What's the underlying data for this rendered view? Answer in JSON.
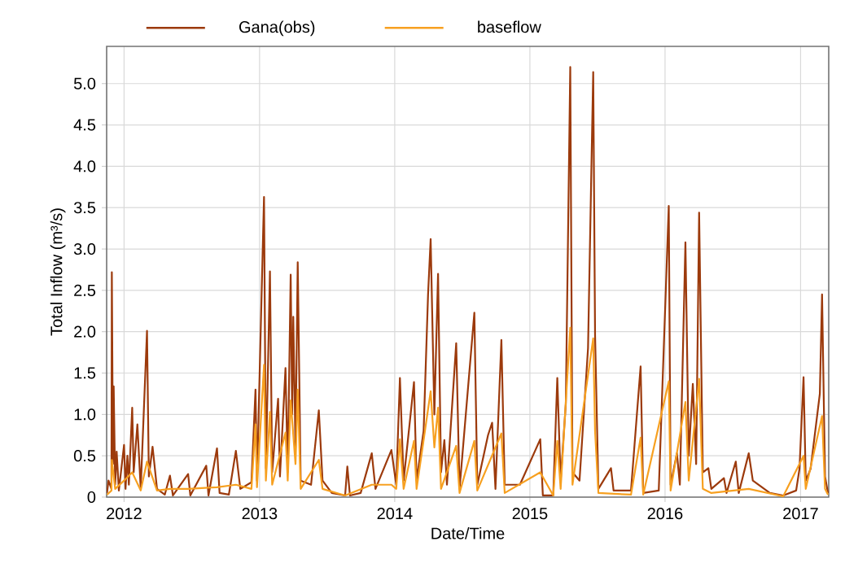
{
  "chart_data": {
    "type": "line",
    "xlabel": "Date/Time",
    "ylabel": "Total Inflow (m³/s)",
    "xlim": [
      "2011-11-15",
      "2017-03-18"
    ],
    "ylim": [
      0,
      5.45
    ],
    "xticks": [
      "2012",
      "2013",
      "2014",
      "2015",
      "2016",
      "2017"
    ],
    "yticks": [
      0,
      0.5,
      {
        "value": 1,
        "label": "1.0"
      },
      1.5,
      {
        "value": 2,
        "label": "2.0"
      },
      2.5,
      {
        "value": 3,
        "label": "3.0"
      },
      3.5,
      {
        "value": 4,
        "label": "4.0"
      },
      4.5,
      {
        "value": 5,
        "label": "5.0"
      }
    ],
    "grid": true,
    "legend": "top",
    "line_style": "solid",
    "series": [
      {
        "name": "Gana(obs)",
        "color": "#9c3a0c",
        "x": [
          "2011-11-16",
          "2011-11-20",
          "2011-11-28",
          "2011-11-29",
          "2011-12-02",
          "2011-12-04",
          "2011-12-08",
          "2011-12-12",
          "2011-12-18",
          "2012-01-01",
          "2012-01-05",
          "2012-01-10",
          "2012-01-14",
          "2012-01-23",
          "2012-01-27",
          "2012-02-06",
          "2012-02-15",
          "2012-03-03",
          "2012-03-08",
          "2012-03-18",
          "2012-03-30",
          "2012-04-20",
          "2012-05-04",
          "2012-05-12",
          "2012-06-22",
          "2012-06-28",
          "2012-08-10",
          "2012-08-16",
          "2012-09-08",
          "2012-09-15",
          "2012-10-10",
          "2012-10-29",
          "2012-11-10",
          "2012-12-10",
          "2012-12-21",
          "2012-12-25",
          "2013-01-13",
          "2013-01-18",
          "2013-01-29",
          "2013-02-04",
          "2013-02-20",
          "2013-02-25",
          "2013-03-12",
          "2013-03-18",
          "2013-03-26",
          "2013-03-30",
          "2013-04-02",
          "2013-04-08",
          "2013-04-14",
          "2013-04-22",
          "2013-05-20",
          "2013-06-10",
          "2013-06-20",
          "2013-07-15",
          "2013-08-20",
          "2013-08-26",
          "2013-09-02",
          "2013-10-01",
          "2013-10-31",
          "2013-11-10",
          "2013-12-23",
          "2014-01-05",
          "2014-01-15",
          "2014-01-25",
          "2014-02-22",
          "2014-03-01",
          "2014-03-20",
          "2014-04-01",
          "2014-04-08",
          "2014-04-12",
          "2014-04-18",
          "2014-04-28",
          "2014-05-06",
          "2014-05-15",
          "2014-05-22",
          "2014-06-16",
          "2014-06-25",
          "2014-08-04",
          "2014-08-12",
          "2014-09-10",
          "2014-09-21",
          "2014-09-30",
          "2014-10-16",
          "2014-10-25",
          "2014-12-05",
          "2015-01-29",
          "2015-02-05",
          "2015-03-05",
          "2015-03-16",
          "2015-03-25",
          "2015-04-08",
          "2015-04-20",
          "2015-04-26",
          "2015-05-15",
          "2015-06-07",
          "2015-06-21",
          "2015-06-26",
          "2015-07-05",
          "2015-08-08",
          "2015-08-15",
          "2015-10-01",
          "2015-10-27",
          "2015-11-03",
          "2015-12-15",
          "2016-01-11",
          "2016-01-16",
          "2016-02-02",
          "2016-02-10",
          "2016-02-25",
          "2016-03-05",
          "2016-03-16",
          "2016-03-25",
          "2016-04-02",
          "2016-04-12",
          "2016-04-27",
          "2016-05-05",
          "2016-06-08",
          "2016-06-15",
          "2016-07-10",
          "2016-07-18",
          "2016-08-14",
          "2016-08-25",
          "2016-10-10",
          "2016-11-15",
          "2016-12-20",
          "2016-12-29",
          "2017-01-09",
          "2017-01-15",
          "2017-01-28",
          "2017-02-22",
          "2017-02-28",
          "2017-03-08",
          "2017-03-16"
        ],
        "values": [
          0.05,
          0.2,
          0.1,
          2.72,
          0.4,
          1.34,
          0.15,
          0.55,
          0.08,
          0.63,
          0.1,
          0.5,
          0.15,
          1.08,
          0.3,
          0.88,
          0.1,
          2.01,
          0.25,
          0.61,
          0.1,
          0.03,
          0.26,
          0.02,
          0.28,
          0.02,
          0.38,
          0.02,
          0.59,
          0.05,
          0.03,
          0.56,
          0.1,
          0.18,
          1.3,
          0.2,
          3.63,
          0.35,
          2.73,
          0.3,
          1.19,
          0.25,
          1.56,
          0.3,
          2.69,
          1.0,
          2.18,
          0.6,
          2.84,
          0.2,
          0.15,
          1.05,
          0.2,
          0.05,
          0.02,
          0.37,
          0.02,
          0.05,
          0.53,
          0.1,
          0.57,
          0.15,
          1.44,
          0.2,
          1.39,
          0.2,
          0.8,
          2.45,
          3.12,
          2.26,
          1.0,
          2.7,
          0.3,
          0.69,
          0.15,
          1.86,
          0.1,
          2.23,
          0.15,
          0.75,
          0.9,
          0.1,
          1.9,
          0.15,
          0.15,
          0.7,
          0.02,
          0.02,
          1.44,
          0.2,
          1.13,
          5.2,
          0.3,
          0.2,
          1.8,
          5.14,
          1.96,
          0.1,
          0.35,
          0.08,
          0.08,
          1.58,
          0.05,
          0.08,
          3.52,
          0.15,
          0.53,
          0.15,
          3.08,
          0.5,
          1.37,
          0.4,
          3.44,
          0.3,
          0.35,
          0.1,
          0.23,
          0.05,
          0.43,
          0.05,
          0.53,
          0.2,
          0.05,
          0.02,
          0.08,
          0.34,
          1.45,
          0.2,
          0.34,
          1.25,
          2.45,
          0.25,
          0.05
        ]
      },
      {
        "name": "baseflow",
        "color": "#f7a020",
        "x": [
          "2011-11-16",
          "2011-11-28",
          "2011-11-29",
          "2011-12-08",
          "2012-01-01",
          "2012-01-23",
          "2012-02-15",
          "2012-03-03",
          "2012-03-30",
          "2012-05-04",
          "2012-06-22",
          "2012-09-08",
          "2012-10-29",
          "2012-12-10",
          "2012-12-21",
          "2012-12-25",
          "2013-01-13",
          "2013-01-18",
          "2013-01-29",
          "2013-02-04",
          "2013-03-12",
          "2013-03-18",
          "2013-03-26",
          "2013-04-08",
          "2013-04-14",
          "2013-04-22",
          "2013-06-10",
          "2013-06-20",
          "2013-08-20",
          "2013-10-31",
          "2013-12-23",
          "2014-01-05",
          "2014-01-15",
          "2014-01-25",
          "2014-02-22",
          "2014-03-01",
          "2014-04-08",
          "2014-04-18",
          "2014-04-28",
          "2014-05-06",
          "2014-06-16",
          "2014-06-25",
          "2014-08-04",
          "2014-08-12",
          "2014-10-16",
          "2014-10-25",
          "2015-01-29",
          "2015-03-05",
          "2015-03-16",
          "2015-03-25",
          "2015-04-20",
          "2015-04-26",
          "2015-06-21",
          "2015-06-26",
          "2015-07-05",
          "2015-10-01",
          "2015-10-27",
          "2015-11-03",
          "2016-01-11",
          "2016-01-16",
          "2016-02-25",
          "2016-03-05",
          "2016-04-02",
          "2016-04-12",
          "2016-05-05",
          "2016-08-14",
          "2016-11-15",
          "2017-01-09",
          "2017-01-15",
          "2017-02-28",
          "2017-03-08",
          "2017-03-16"
        ],
        "values": [
          0.03,
          0.08,
          0.45,
          0.1,
          0.2,
          0.3,
          0.08,
          0.43,
          0.08,
          0.1,
          0.1,
          0.12,
          0.15,
          0.1,
          0.88,
          0.12,
          1.6,
          0.2,
          1.03,
          0.15,
          0.78,
          0.2,
          1.17,
          0.4,
          1.3,
          0.1,
          0.45,
          0.1,
          0.02,
          0.15,
          0.15,
          0.1,
          0.7,
          0.1,
          0.68,
          0.1,
          1.28,
          0.6,
          1.08,
          0.1,
          0.62,
          0.05,
          0.68,
          0.08,
          0.77,
          0.05,
          0.3,
          0.02,
          0.68,
          0.1,
          2.05,
          0.15,
          1.92,
          0.8,
          0.05,
          0.03,
          0.72,
          0.03,
          1.4,
          0.08,
          1.15,
          0.2,
          1.43,
          0.1,
          0.05,
          0.1,
          0.01,
          0.5,
          0.1,
          0.98,
          0.1,
          0.03
        ]
      }
    ]
  }
}
